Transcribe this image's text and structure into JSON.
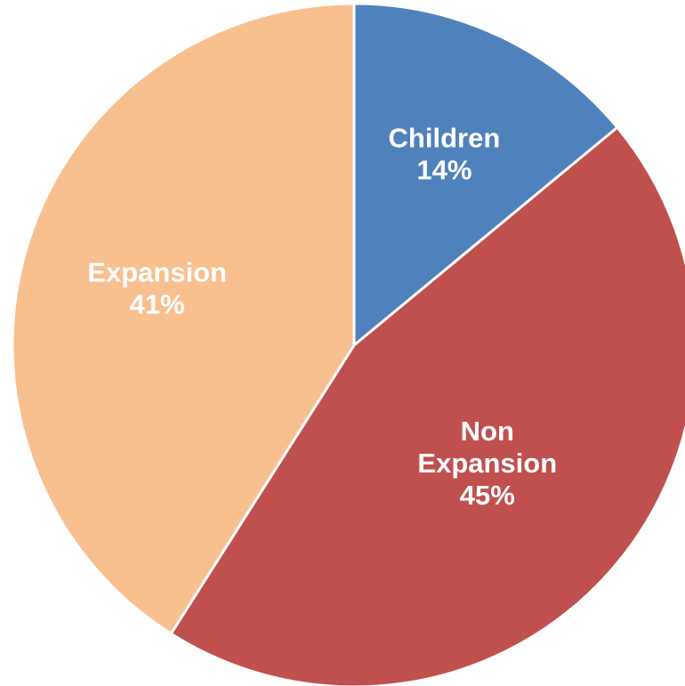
{
  "chart_data": {
    "type": "pie",
    "title": "",
    "slices": [
      {
        "label_lines": [
          "Children"
        ],
        "percent_label": "14%",
        "value": 14,
        "color": "#4f81bd"
      },
      {
        "label_lines": [
          "Non",
          "Expansion"
        ],
        "percent_label": "45%",
        "value": 45,
        "color": "#c0504d"
      },
      {
        "label_lines": [
          "Expansion"
        ],
        "percent_label": "41%",
        "value": 41,
        "color": "#f9c08f"
      }
    ],
    "start_angle_deg": 0,
    "direction": "clockwise",
    "legend": "none",
    "slice_border_color": "#ffffff"
  }
}
